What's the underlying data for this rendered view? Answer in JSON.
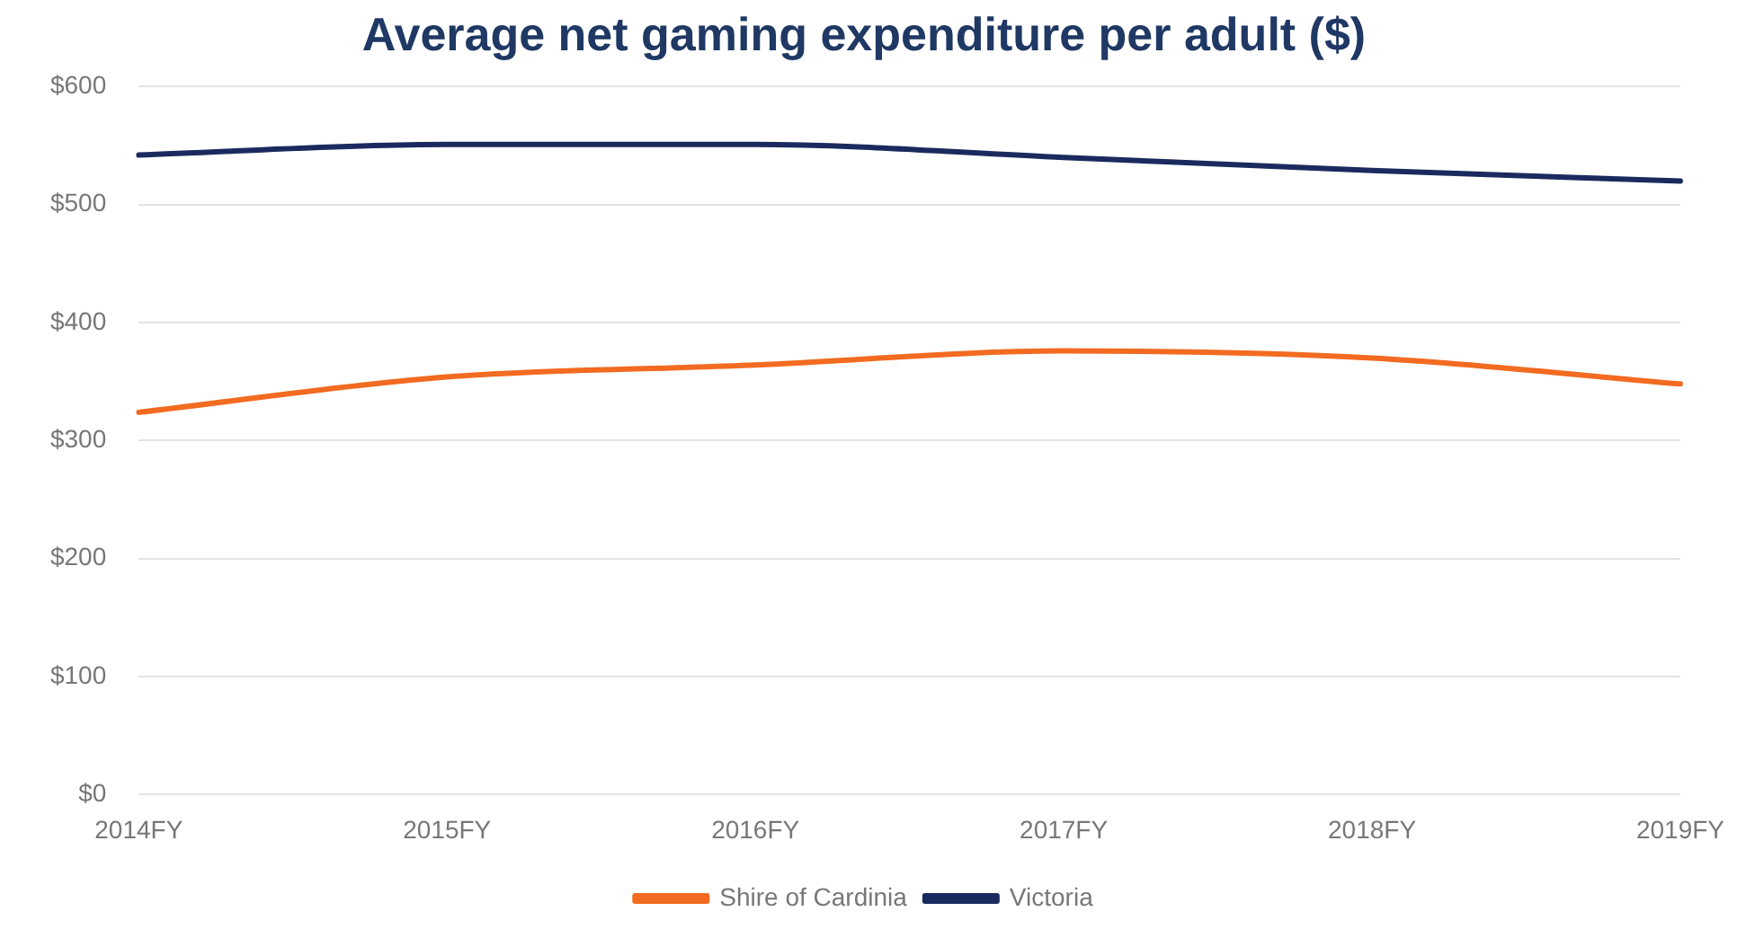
{
  "chart_data": {
    "type": "line",
    "title": "Average net gaming expenditure per adult ($)",
    "categories": [
      "2014FY",
      "2015FY",
      "2016FY",
      "2017FY",
      "2018FY",
      "2019FY"
    ],
    "series": [
      {
        "name": "Shire of Cardinia",
        "color": "#f26b21",
        "values": [
          324,
          354,
          364,
          376,
          370,
          348
        ]
      },
      {
        "name": "Victoria",
        "color": "#1b2a5e",
        "values": [
          542,
          551,
          551,
          540,
          529,
          520
        ]
      }
    ],
    "ylim": [
      0,
      600
    ],
    "yticks": [
      {
        "value": 0,
        "label": "$0"
      },
      {
        "value": 100,
        "label": "$100"
      },
      {
        "value": 200,
        "label": "$200"
      },
      {
        "value": 300,
        "label": "$300"
      },
      {
        "value": 400,
        "label": "$400"
      },
      {
        "value": 500,
        "label": "$500"
      },
      {
        "value": 600,
        "label": "$600"
      }
    ],
    "grid": "y",
    "legend": "bottom",
    "marker": "none",
    "line_style": "solid"
  }
}
